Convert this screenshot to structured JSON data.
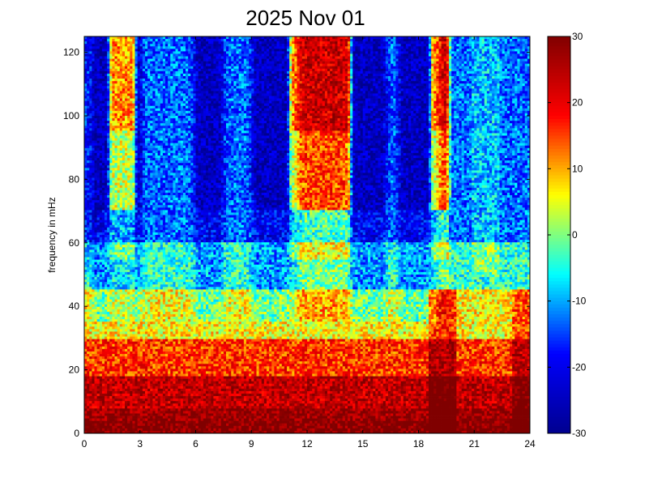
{
  "chart_data": {
    "type": "heatmap",
    "title": "2025 Nov 01",
    "xlabel": "",
    "ylabel": "frequency in mHz",
    "xlim": [
      0,
      24
    ],
    "ylim": [
      0,
      125
    ],
    "x_ticks": [
      "0",
      "3",
      "6",
      "9",
      "12",
      "15",
      "18",
      "21",
      "24"
    ],
    "y_ticks": [
      "0",
      "20",
      "40",
      "60",
      "80",
      "100",
      "120"
    ],
    "colorbar": {
      "range": [
        -30,
        30
      ],
      "ticks": [
        "30",
        "20",
        "10",
        "0",
        "-10",
        "-20",
        "-30"
      ],
      "colormap": "jet",
      "colormap_stops": [
        "#00008f",
        "#0000ff",
        "#00ffff",
        "#ffff00",
        "#ff0000",
        "#800000"
      ]
    },
    "grid": false,
    "color_scale_note": "Values are dB-like power; low frequencies (0-20 mHz) strongly red/dark-red, high frequencies mostly cyan/blue with dark-red columns around 1.5-2.5 h and 11-14 h at top, and a red spike near 19 h.",
    "structure": {
      "low_frequency_band_mHz": [
        0,
        15
      ],
      "low_frequency_level": 28,
      "bright_columns_hours": [
        [
          1.5,
          2.6
        ],
        [
          11.2,
          14.2
        ],
        [
          18.8,
          19.5
        ]
      ],
      "blue_columns_hours": [
        [
          0.8,
          2.8
        ],
        [
          6.2,
          7.2
        ],
        [
          9.3,
          11.2
        ],
        [
          14.6,
          16.0
        ],
        [
          17.2,
          18.8
        ]
      ]
    }
  }
}
